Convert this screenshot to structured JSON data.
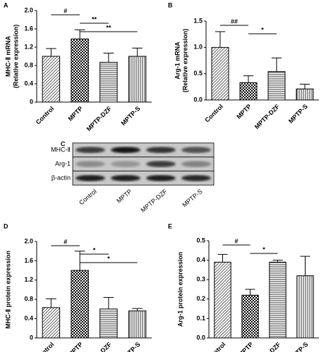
{
  "chart_data": [
    {
      "type": "bar",
      "label": "A",
      "ylabel": [
        "MHC-Ⅱ mRNA",
        "(Relative expression)"
      ],
      "categories": [
        "Control",
        "MPTP",
        "MPTP-DZF",
        "MPTP-S"
      ],
      "values": [
        1.0,
        1.38,
        0.87,
        1.0
      ],
      "errors": [
        0.17,
        0.2,
        0.2,
        0.18
      ],
      "patterns": [
        "diagonal",
        "checker",
        "horizontal",
        "vertical"
      ],
      "color": "#000000",
      "ylim": [
        0,
        2
      ],
      "yticks": [
        0,
        0.4,
        0.8,
        1.2,
        1.6,
        {
          "value": 2,
          "label": "2.0"
        }
      ],
      "annotations": [
        {
          "text": "#",
          "between": [
            "Control",
            "MPTP"
          ]
        },
        {
          "text": "**",
          "between": [
            "MPTP",
            "MPTP-DZF"
          ]
        },
        {
          "text": "**",
          "between": [
            "MPTP",
            "MPTP-S"
          ]
        }
      ]
    },
    {
      "type": "bar",
      "label": "B",
      "ylabel": [
        "Arg-1 mRNA",
        "(Relative expression)"
      ],
      "categories": [
        "Control",
        "MPTP",
        "MPTP-DZF",
        "MPTP-S"
      ],
      "values": [
        1.0,
        0.33,
        0.54,
        0.21
      ],
      "errors": [
        0.3,
        0.13,
        0.26,
        0.09
      ],
      "patterns": [
        "diagonal",
        "checker",
        "horizontal",
        "vertical"
      ],
      "color": "#000000",
      "ylim": [
        0,
        1.5
      ],
      "yticks": [
        {
          "value": 0,
          "label": "0.0"
        },
        {
          "value": 0.5,
          "label": "0.5"
        },
        {
          "value": 1,
          "label": "1.0"
        },
        {
          "value": 1.5,
          "label": "1.5"
        }
      ],
      "annotations": [
        {
          "text": "##",
          "between": [
            "Control",
            "MPTP"
          ]
        },
        {
          "text": "*",
          "between": [
            "MPTP",
            "MPTP-DZF"
          ]
        }
      ]
    },
    {
      "type": "blot",
      "label": "C",
      "rows": [
        "MHC-Ⅱ",
        "Arg-1",
        "β-actin"
      ],
      "lanes": [
        "Control",
        "MPTP",
        "MPTP-DZF",
        "MPTP-S"
      ]
    },
    {
      "type": "bar",
      "label": "D",
      "ylabel": [
        "MHC-Ⅱ protein expression"
      ],
      "categories": [
        "Control",
        "MPTP",
        "MPTP-DZF",
        "MPTP-S"
      ],
      "values": [
        0.63,
        1.4,
        0.6,
        0.56
      ],
      "errors": [
        0.18,
        0.4,
        0.24,
        0.05
      ],
      "patterns": [
        "diagonal",
        "checker",
        "horizontal",
        "vertical"
      ],
      "color": "#000000",
      "ylim": [
        0,
        2
      ],
      "yticks": [
        0,
        0.4,
        0.8,
        1.2,
        1.6,
        {
          "value": 2,
          "label": "2.0"
        }
      ],
      "annotations": [
        {
          "text": "#",
          "between": [
            "Control",
            "MPTP"
          ]
        },
        {
          "text": "*",
          "between": [
            "MPTP",
            "MPTP-DZF"
          ]
        },
        {
          "text": "*",
          "between": [
            "MPTP",
            "MPTP-S"
          ]
        }
      ]
    },
    {
      "type": "bar",
      "label": "E",
      "ylabel": [
        "Arg-1 protein expression"
      ],
      "categories": [
        "Control",
        "MPTP",
        "MPTP-DZF",
        "MPTP-S"
      ],
      "values": [
        0.39,
        0.22,
        0.39,
        0.32
      ],
      "errors": [
        0.04,
        0.03,
        0.01,
        0.1
      ],
      "patterns": [
        "diagonal",
        "checker",
        "horizontal",
        "vertical"
      ],
      "color": "#000000",
      "ylim": [
        0,
        0.5
      ],
      "yticks": [
        {
          "value": 0,
          "label": "0.0"
        },
        0.1,
        0.2,
        0.3,
        0.4,
        0.5
      ],
      "annotations": [
        {
          "text": "#",
          "between": [
            "Control",
            "MPTP"
          ]
        },
        {
          "text": "*",
          "between": [
            "MPTP",
            "MPTP-DZF"
          ]
        }
      ]
    }
  ]
}
